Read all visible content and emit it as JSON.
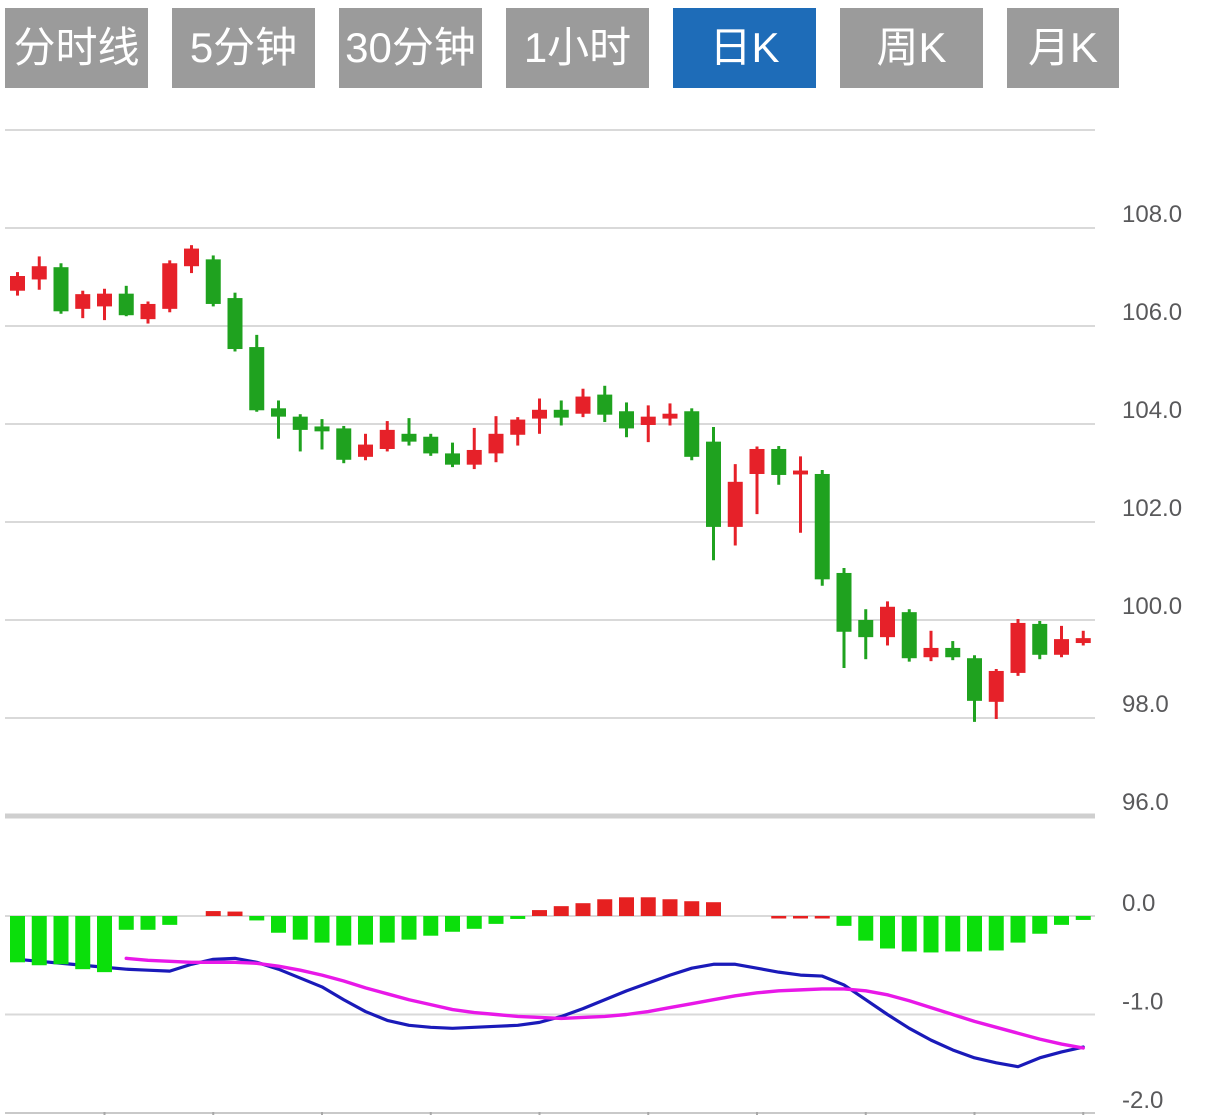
{
  "tabs": {
    "items": [
      {
        "label": "分时线",
        "active": false
      },
      {
        "label": "5分钟",
        "active": false
      },
      {
        "label": "30分钟",
        "active": false
      },
      {
        "label": "1小时",
        "active": false
      },
      {
        "label": "日K",
        "active": true
      },
      {
        "label": "周K",
        "active": false
      },
      {
        "label": "月K",
        "active": false
      }
    ]
  },
  "colors": {
    "tab_bg": "#9b9b9b",
    "tab_active_bg": "#1e6cb8",
    "tab_text": "#ffffff",
    "candle_up": "#e62129",
    "candle_down": "#1fa21f",
    "hist_up": "#e62020",
    "hist_down": "#0bdf0b",
    "dif_line": "#1a1ab9",
    "dea_line": "#e818e8",
    "grid": "#d9d9d9",
    "grid_thick": "#cfcfcf",
    "axis_line": "#c9c9c9",
    "tick": "#a8a8a8",
    "axis_text": "#59595b"
  },
  "chart_data": {
    "type": "candlestick",
    "title": "Daily K-line chart with MACD indicator",
    "legend_position": "none",
    "grid": true,
    "price_axis": {
      "side": "right",
      "grid_values": [
        110,
        108,
        106,
        104,
        102,
        100,
        98
      ],
      "labels": [
        "108.0",
        "106.0",
        "104.0",
        "102.0",
        "100.0",
        "98.0",
        "96.0"
      ],
      "label_values": [
        108,
        106,
        104,
        102,
        100,
        98,
        96
      ],
      "thick_value": 96,
      "range": [
        95.6,
        110.2
      ]
    },
    "candles_format": "open_high_low_close",
    "candles": [
      [
        106.72,
        107.1,
        106.62,
        107.02
      ],
      [
        106.95,
        107.42,
        106.74,
        107.22
      ],
      [
        107.2,
        107.28,
        106.25,
        106.3
      ],
      [
        106.35,
        106.72,
        106.16,
        106.65
      ],
      [
        106.4,
        106.76,
        106.12,
        106.66
      ],
      [
        106.66,
        106.82,
        106.2,
        106.22
      ],
      [
        106.14,
        106.5,
        106.05,
        106.45
      ],
      [
        106.35,
        107.34,
        106.28,
        107.28
      ],
      [
        107.22,
        107.65,
        107.08,
        107.58
      ],
      [
        107.36,
        107.44,
        106.4,
        106.45
      ],
      [
        106.57,
        106.68,
        105.48,
        105.53
      ],
      [
        105.57,
        105.82,
        104.25,
        104.28
      ],
      [
        104.32,
        104.48,
        103.7,
        104.15
      ],
      [
        104.15,
        104.2,
        103.44,
        103.88
      ],
      [
        103.95,
        104.1,
        103.48,
        103.85
      ],
      [
        103.91,
        103.96,
        103.2,
        103.27
      ],
      [
        103.33,
        103.8,
        103.26,
        103.58
      ],
      [
        103.49,
        104.06,
        103.44,
        103.88
      ],
      [
        103.8,
        104.12,
        103.56,
        103.64
      ],
      [
        103.74,
        103.8,
        103.35,
        103.4
      ],
      [
        103.4,
        103.62,
        103.12,
        103.17
      ],
      [
        103.17,
        103.92,
        103.08,
        103.47
      ],
      [
        103.4,
        104.16,
        103.22,
        103.8
      ],
      [
        103.78,
        104.14,
        103.56,
        104.09
      ],
      [
        104.11,
        104.52,
        103.8,
        104.29
      ],
      [
        104.29,
        104.48,
        103.97,
        104.13
      ],
      [
        104.21,
        104.72,
        104.14,
        104.56
      ],
      [
        104.6,
        104.78,
        104.04,
        104.19
      ],
      [
        104.26,
        104.44,
        103.73,
        103.91
      ],
      [
        103.98,
        104.38,
        103.63,
        104.15
      ],
      [
        104.11,
        104.42,
        103.97,
        104.21
      ],
      [
        104.26,
        104.32,
        103.26,
        103.33
      ],
      [
        103.64,
        103.94,
        101.22,
        101.9
      ],
      [
        101.9,
        103.18,
        101.52,
        102.82
      ],
      [
        102.98,
        103.54,
        102.16,
        103.49
      ],
      [
        103.49,
        103.55,
        102.76,
        102.96
      ],
      [
        102.97,
        103.34,
        101.78,
        103.05
      ],
      [
        102.98,
        103.06,
        100.7,
        100.83
      ],
      [
        100.96,
        101.06,
        99.02,
        99.76
      ],
      [
        100.0,
        100.22,
        99.2,
        99.65
      ],
      [
        99.65,
        100.38,
        99.48,
        100.27
      ],
      [
        100.16,
        100.22,
        99.15,
        99.22
      ],
      [
        99.24,
        99.78,
        99.16,
        99.43
      ],
      [
        99.43,
        99.57,
        99.18,
        99.24
      ],
      [
        99.22,
        99.28,
        97.92,
        98.35
      ],
      [
        98.33,
        99.0,
        97.98,
        98.96
      ],
      [
        98.92,
        100.02,
        98.86,
        99.94
      ],
      [
        99.92,
        99.98,
        99.2,
        99.29
      ],
      [
        99.29,
        99.88,
        99.24,
        99.61
      ],
      [
        99.53,
        99.78,
        99.48,
        99.63
      ]
    ],
    "macd": {
      "axis_labels": [
        "0.0",
        "-1.0",
        "-2.0"
      ],
      "axis_label_values": [
        0,
        -1,
        -2
      ],
      "grid_values": [
        0,
        -1
      ],
      "bottom_value": -2,
      "histogram": [
        {
          "v": -0.47,
          "c": "g"
        },
        {
          "v": -0.5,
          "c": "g"
        },
        {
          "v": -0.49,
          "c": "g"
        },
        {
          "v": -0.54,
          "c": "g"
        },
        {
          "v": -0.57,
          "c": "g"
        },
        {
          "v": -0.14,
          "c": "g"
        },
        {
          "v": -0.14,
          "c": "g"
        },
        {
          "v": -0.09,
          "c": "g"
        },
        {
          "v": 0,
          "c": null
        },
        {
          "v": 0.05,
          "c": "r"
        },
        {
          "v": 0.045,
          "c": "r"
        },
        {
          "v": -0.045,
          "c": "g"
        },
        {
          "v": -0.17,
          "c": "g"
        },
        {
          "v": -0.24,
          "c": "g"
        },
        {
          "v": -0.27,
          "c": "g"
        },
        {
          "v": -0.3,
          "c": "g"
        },
        {
          "v": -0.29,
          "c": "g"
        },
        {
          "v": -0.27,
          "c": "g"
        },
        {
          "v": -0.24,
          "c": "g"
        },
        {
          "v": -0.2,
          "c": "g"
        },
        {
          "v": -0.16,
          "c": "g"
        },
        {
          "v": -0.13,
          "c": "g"
        },
        {
          "v": -0.08,
          "c": "g"
        },
        {
          "v": -0.03,
          "c": "g"
        },
        {
          "v": 0.06,
          "c": "r"
        },
        {
          "v": 0.1,
          "c": "r"
        },
        {
          "v": 0.13,
          "c": "r"
        },
        {
          "v": 0.17,
          "c": "r"
        },
        {
          "v": 0.19,
          "c": "r"
        },
        {
          "v": 0.19,
          "c": "r"
        },
        {
          "v": 0.17,
          "c": "r"
        },
        {
          "v": 0.15,
          "c": "r"
        },
        {
          "v": 0.14,
          "c": "r"
        },
        {
          "v": 0,
          "c": null
        },
        {
          "v": 0,
          "c": null
        },
        {
          "v": -0.02,
          "c": "r"
        },
        {
          "v": -0.02,
          "c": "r"
        },
        {
          "v": -0.02,
          "c": "r"
        },
        {
          "v": -0.1,
          "c": "g"
        },
        {
          "v": -0.25,
          "c": "g"
        },
        {
          "v": -0.33,
          "c": "g"
        },
        {
          "v": -0.36,
          "c": "g"
        },
        {
          "v": -0.37,
          "c": "g"
        },
        {
          "v": -0.36,
          "c": "g"
        },
        {
          "v": -0.36,
          "c": "g"
        },
        {
          "v": -0.35,
          "c": "g"
        },
        {
          "v": -0.27,
          "c": "g"
        },
        {
          "v": -0.18,
          "c": "g"
        },
        {
          "v": -0.09,
          "c": "g"
        },
        {
          "v": -0.04,
          "c": "g"
        }
      ],
      "dif": [
        -0.44,
        -0.46,
        -0.48,
        -0.5,
        -0.52,
        -0.54,
        -0.55,
        -0.56,
        -0.49,
        -0.44,
        -0.43,
        -0.47,
        -0.54,
        -0.63,
        -0.72,
        -0.85,
        -0.97,
        -1.06,
        -1.11,
        -1.13,
        -1.14,
        -1.13,
        -1.12,
        -1.11,
        -1.08,
        -1.02,
        -0.94,
        -0.85,
        -0.76,
        -0.68,
        -0.6,
        -0.53,
        -0.49,
        -0.49,
        -0.53,
        -0.57,
        -0.6,
        -0.61,
        -0.7,
        -0.85,
        -1.0,
        -1.14,
        -1.26,
        -1.36,
        -1.44,
        -1.49,
        -1.53,
        -1.44,
        -1.38,
        -1.33
      ],
      "dea": [
        null,
        null,
        null,
        null,
        null,
        -0.43,
        -0.45,
        -0.46,
        -0.47,
        -0.47,
        -0.47,
        -0.48,
        -0.51,
        -0.55,
        -0.6,
        -0.66,
        -0.73,
        -0.79,
        -0.85,
        -0.9,
        -0.95,
        -0.98,
        -1.0,
        -1.02,
        -1.03,
        -1.04,
        -1.03,
        -1.02,
        -1.0,
        -0.97,
        -0.93,
        -0.89,
        -0.85,
        -0.81,
        -0.78,
        -0.76,
        -0.75,
        -0.74,
        -0.74,
        -0.76,
        -0.8,
        -0.86,
        -0.93,
        -1.0,
        -1.07,
        -1.13,
        -1.19,
        -1.25,
        -1.3,
        -1.34
      ]
    },
    "x_axis": {
      "tick_every_n_candles": 5,
      "first_tick_index": 4,
      "tick_count": 10
    }
  }
}
